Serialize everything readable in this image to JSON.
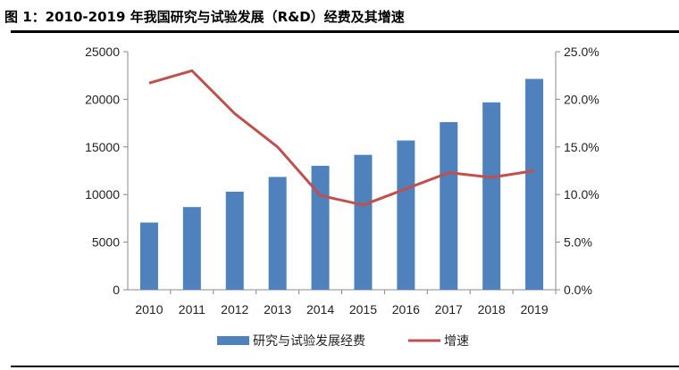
{
  "title": "图 1：2010-2019 年我国研究与试验发展（R&D）经费及其增速",
  "chart_data": {
    "type": "bar+line",
    "categories": [
      "2010",
      "2011",
      "2012",
      "2013",
      "2014",
      "2015",
      "2016",
      "2017",
      "2018",
      "2019"
    ],
    "series": [
      {
        "name": "研究与试验发展经费",
        "type": "bar",
        "axis": "left",
        "color": "#4f81bd",
        "values": [
          7062.6,
          8687,
          10298.4,
          11846.6,
          13015.6,
          14169.9,
          15676.7,
          17606.1,
          19677.9,
          22143.6
        ]
      },
      {
        "name": "增速",
        "type": "line",
        "axis": "right",
        "color": "#c0504d",
        "values": [
          21.7,
          23.0,
          18.5,
          15.0,
          9.9,
          8.9,
          10.6,
          12.3,
          11.8,
          12.5
        ]
      }
    ],
    "y_left": {
      "range": [
        0,
        25000
      ],
      "ticks": [
        "0",
        "5000",
        "10000",
        "15000",
        "20000",
        "25000"
      ]
    },
    "y_right": {
      "range": [
        0,
        25
      ],
      "ticks": [
        "0.0%",
        "5.0%",
        "10.0%",
        "15.0%",
        "20.0%",
        "25.0%"
      ]
    },
    "grid": false,
    "legend": "bottom"
  }
}
